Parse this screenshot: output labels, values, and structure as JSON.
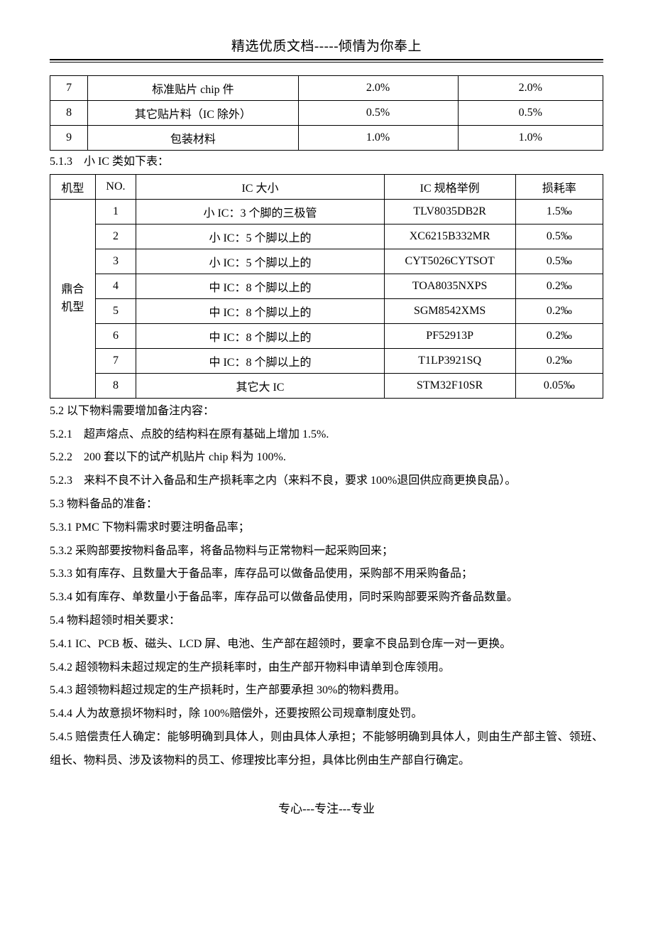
{
  "header": {
    "title": "精选优质文档-----倾情为你奉上"
  },
  "table1": {
    "rows": [
      {
        "no": "7",
        "name": "标准贴片 chip 件",
        "v1": "2.0%",
        "v2": "2.0%"
      },
      {
        "no": "8",
        "name": "其它贴片料（IC 除外）",
        "v1": "0.5%",
        "v2": "0.5%"
      },
      {
        "no": "9",
        "name": "包装材料",
        "v1": "1.0%",
        "v2": "1.0%"
      }
    ]
  },
  "heading_513": "5.1.3　小 IC 类如下表：",
  "table2": {
    "headers": {
      "c1": "机型",
      "c2": "NO.",
      "c3": "IC 大小",
      "c4": "IC 规格举例",
      "c5": "损耗率"
    },
    "group_label": "鼎合机型",
    "rows": [
      {
        "no": "1",
        "size": "小 IC：3 个脚的三极管",
        "spec": "TLV8035DB2R",
        "rate": "1.5‰"
      },
      {
        "no": "2",
        "size": "小 IC：5 个脚以上的",
        "spec": "XC6215B332MR",
        "rate": "0.5‰"
      },
      {
        "no": "3",
        "size": "小 IC：5 个脚以上的",
        "spec": "CYT5026CYTSOT",
        "rate": "0.5‰"
      },
      {
        "no": "4",
        "size": "中 IC：8 个脚以上的",
        "spec": "TOA8035NXPS",
        "rate": "0.2‰"
      },
      {
        "no": "5",
        "size": "中 IC：8 个脚以上的",
        "spec": "SGM8542XMS",
        "rate": "0.2‰"
      },
      {
        "no": "6",
        "size": "中 IC：8 个脚以上的",
        "spec": "PF52913P",
        "rate": "0.2‰"
      },
      {
        "no": "7",
        "size": "中 IC：8 个脚以上的",
        "spec": "T1LP3921SQ",
        "rate": "0.2‰"
      },
      {
        "no": "8",
        "size": "其它大 IC",
        "spec": "STM32F10SR",
        "rate": "0.05‰"
      }
    ]
  },
  "body": {
    "l1": "5.2 以下物料需要增加备注内容：",
    "l2": "5.2.1　超声熔点、点胶的结构料在原有基础上增加 1.5%.",
    "l3": "5.2.2　200 套以下的试产机贴片 chip 料为 100%.",
    "l4": "5.2.3　来料不良不计入备品和生产损耗率之内（来料不良，要求 100%退回供应商更换良品）。",
    "l5": "5.3 物料备品的准备：",
    "l6": "5.3.1 PMC 下物料需求时要注明备品率；",
    "l7": "5.3.2 采购部要按物料备品率，将备品物料与正常物料一起采购回来；",
    "l8": "5.3.3 如有库存、且数量大于备品率，库存品可以做备品使用，采购部不用采购备品；",
    "l9": "5.3.4 如有库存、单数量小于备品率，库存品可以做备品使用，同时采购部要采购齐备品数量。",
    "l10": "5.4 物料超领时相关要求：",
    "l11": "5.4.1 IC、PCB 板、磁头、LCD 屏、电池、生产部在超领时，要拿不良品到仓库一对一更换。",
    "l12": "5.4.2 超领物料未超过规定的生产损耗率时，由生产部开物料申请单到仓库领用。",
    "l13": "5.4.3 超领物料超过规定的生产损耗时，生产部要承担 30%的物料费用。",
    "l14": "5.4.4 人为故意损坏物料时，除 100%赔偿外，还要按照公司规章制度处罚。",
    "l15": "5.4.5 赔偿责任人确定：能够明确到具体人，则由具体人承担；不能够明确到具体人，则由生产部主管、领班、组长、物料员、涉及该物料的员工、修理按比率分担，具体比例由生产部自行确定。"
  },
  "footer": "专心---专注---专业"
}
